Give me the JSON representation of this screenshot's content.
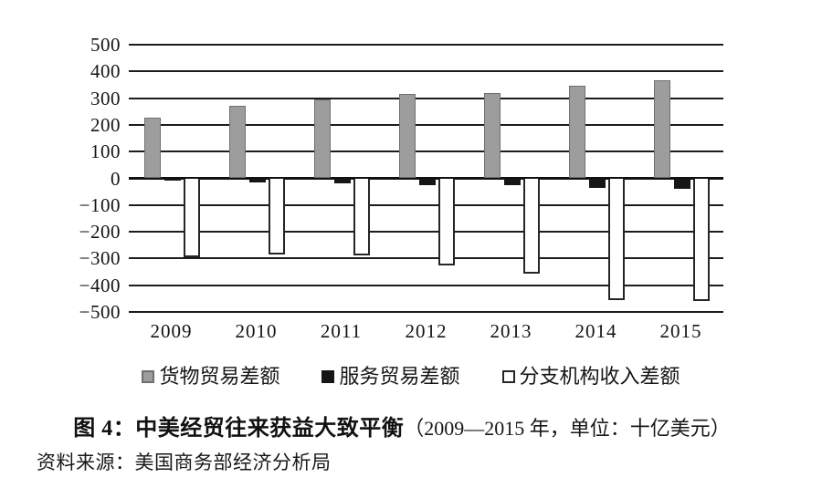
{
  "chart_data": {
    "type": "bar",
    "title_main": "图 4：中美经贸往来获益大致平衡",
    "title_suffix": "（2009—2015 年，单位：十亿美元）",
    "source": "资料来源：美国商务部经济分析局",
    "categories": [
      "2009",
      "2010",
      "2011",
      "2012",
      "2013",
      "2014",
      "2015"
    ],
    "series": [
      {
        "key": "goods-trade-balance",
        "name": "货物贸易差额",
        "color": "#9d9d9d",
        "border_color": "#6f6f6f",
        "values": [
          227,
          273,
          295,
          315,
          319,
          345,
          367
        ]
      },
      {
        "key": "services-trade-balance",
        "name": "服务贸易差额",
        "color": "#161616",
        "border_color": "#161616",
        "values": [
          -10,
          -15,
          -20,
          -25,
          -27,
          -35,
          -40
        ]
      },
      {
        "key": "branch-income-balance",
        "name": "分支机构收入差额",
        "color": "#ffffff",
        "border_color": "#262626",
        "values": [
          -295,
          -285,
          -290,
          -325,
          -355,
          -455,
          -460
        ]
      }
    ],
    "ylim": [
      -500,
      500
    ],
    "yticks": [
      500,
      400,
      300,
      200,
      100,
      0,
      -100,
      -200,
      -300,
      -400,
      -500
    ],
    "grid": "horizontal",
    "legend_position": "bottom",
    "axis_color": "#1c1c1c"
  }
}
